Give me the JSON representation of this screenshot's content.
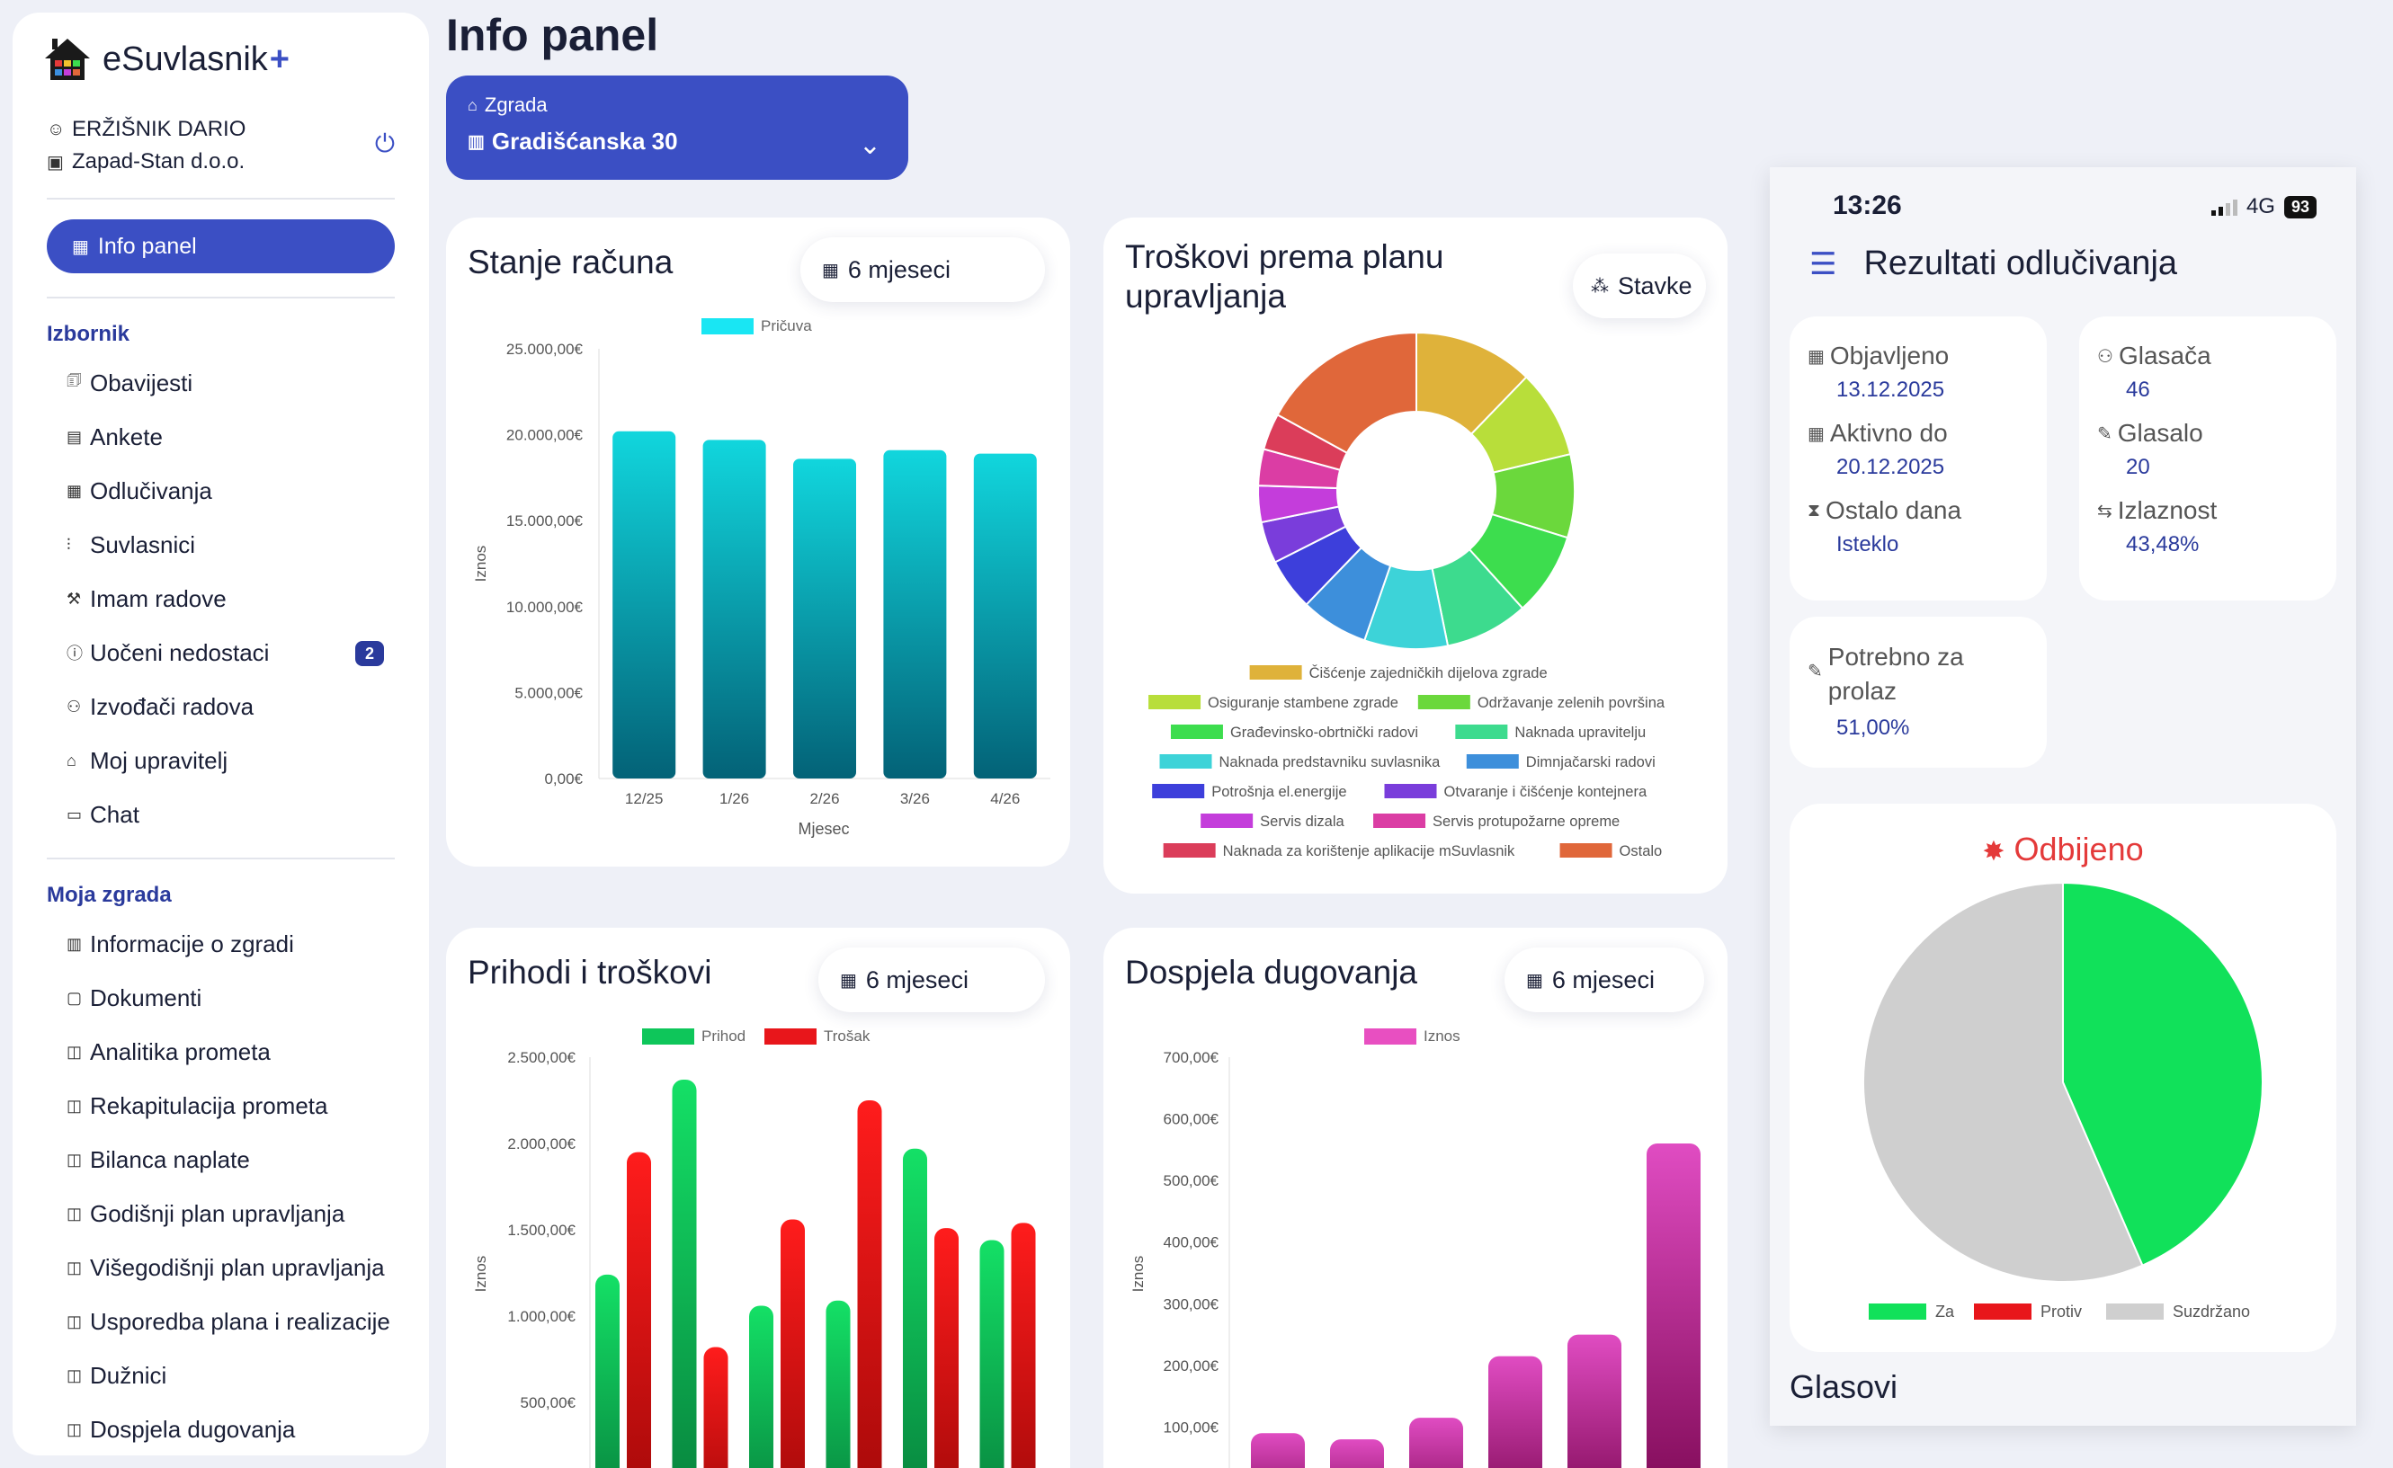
{
  "brand": {
    "name": "eSuvlasnik",
    "plus": "+"
  },
  "user": {
    "name": "ERŽIŠNIK DARIO",
    "company": "Zapad-Stan d.o.o."
  },
  "nav": {
    "active": "Info panel",
    "section1": "Izbornik",
    "items1": [
      {
        "icon": "🗊",
        "label": "Obavijesti"
      },
      {
        "icon": "▤",
        "label": "Ankete"
      },
      {
        "icon": "▦",
        "label": "Odlučivanja"
      },
      {
        "icon": "⫶",
        "label": "Suvlasnici"
      },
      {
        "icon": "⚒",
        "label": "Imam radove"
      },
      {
        "icon": "ⓘ",
        "label": "Uočeni nedostaci",
        "badge": "2"
      },
      {
        "icon": "⚇",
        "label": "Izvođači radova"
      },
      {
        "icon": "⌂",
        "label": "Moj upravitelj"
      },
      {
        "icon": "▭",
        "label": "Chat"
      }
    ],
    "section2": "Moja zgrada",
    "items2": [
      {
        "icon": "▥",
        "label": "Informacije o zgradi"
      },
      {
        "icon": "▢",
        "label": "Dokumenti"
      },
      {
        "icon": "◫",
        "label": "Analitika prometa"
      },
      {
        "icon": "◫",
        "label": "Rekapitulacija prometa"
      },
      {
        "icon": "◫",
        "label": "Bilanca naplate"
      },
      {
        "icon": "◫",
        "label": "Godišnji plan upravljanja"
      },
      {
        "icon": "◫",
        "label": "Višegodišnji plan upravljanja"
      },
      {
        "icon": "◫",
        "label": "Usporedba plana i realizacije"
      },
      {
        "icon": "◫",
        "label": "Dužnici"
      },
      {
        "icon": "◫",
        "label": "Dospjela dugovanja"
      }
    ]
  },
  "page": {
    "title": "Info panel"
  },
  "building": {
    "label": "Zgrada",
    "value": "Gradišćanska 30"
  },
  "colors": {
    "accent": "#3b4fc4",
    "accent_dark": "#2a3a9c",
    "rejected": "#e43a3a"
  },
  "cards": {
    "stanje": {
      "title": "Stanje računa",
      "period": "6 mjeseci"
    },
    "troskovi": {
      "title_line1": "Troškovi prema planu",
      "title_line2": "upravljanja",
      "button": "Stavke"
    },
    "prihodi": {
      "title": "Prihodi i troškovi",
      "period": "6 mjeseci"
    },
    "dugovanja": {
      "title": "Dospjela dugovanja",
      "period": "6 mjeseci"
    }
  },
  "chart_data": [
    {
      "type": "bar",
      "id": "stanje",
      "categories": [
        "12/25",
        "1/26",
        "2/26",
        "3/26",
        "4/26"
      ],
      "series": [
        {
          "name": "Pričuva",
          "values": [
            20200,
            19700,
            18600,
            19100,
            18900
          ]
        }
      ],
      "xlabel": "Mjesec",
      "ylabel": "Iznos",
      "yticks": [
        "0,00€",
        "5.000,00€",
        "10.000,00€",
        "15.000,00€",
        "20.000,00€",
        "25.000,00€"
      ],
      "ylim": [
        0,
        25000
      ]
    },
    {
      "type": "pie",
      "id": "troskovi",
      "donut": true,
      "slices": [
        {
          "name": "Čišćenje zajedničkih dijelova zgrade",
          "value": 11.5,
          "color": "#dfb23a"
        },
        {
          "name": "Osiguranje stambene zgrade",
          "value": 8.5,
          "color": "#b8de3a"
        },
        {
          "name": "Održavanje zelenih površina",
          "value": 8.0,
          "color": "#6bd83c"
        },
        {
          "name": "Građevinsko-obrtnički radovi",
          "value": 8.0,
          "color": "#3ddd4e"
        },
        {
          "name": "Naknada upravitelju",
          "value": 8.0,
          "color": "#3ddb8e"
        },
        {
          "name": "Naknada predstavniku suvlasnika",
          "value": 8.0,
          "color": "#3dd3d8"
        },
        {
          "name": "Dimnjačarski radovi",
          "value": 6.5,
          "color": "#3d8fdb"
        },
        {
          "name": "Potrošnja el.energije",
          "value": 5.0,
          "color": "#3d3fdb"
        },
        {
          "name": "Otvaranje i čišćenje kontejnera",
          "value": 4.0,
          "color": "#7a3ddb"
        },
        {
          "name": "Servis dizala",
          "value": 3.5,
          "color": "#c43ddb"
        },
        {
          "name": "Servis protupožarne opreme",
          "value": 3.5,
          "color": "#db3da4"
        },
        {
          "name": "Naknada za korištenje aplikacije mSuvlasnik",
          "value": 3.5,
          "color": "#db3d5a"
        },
        {
          "name": "Ostalo",
          "value": 16.0,
          "color": "#e0673a"
        }
      ]
    },
    {
      "type": "bar",
      "id": "prihodi",
      "categories": [
        "",
        "",
        "",
        "",
        "",
        ""
      ],
      "series": [
        {
          "name": "Prihod",
          "values": [
            1240,
            2370,
            1060,
            1090,
            1970,
            1440
          ],
          "color": "#0ec65a"
        },
        {
          "name": "Trošak",
          "values": [
            1950,
            820,
            1560,
            2250,
            1510,
            1540
          ],
          "color": "#e8161b"
        }
      ],
      "ylabel": "Iznos",
      "yticks": [
        "500,00€",
        "1.000,00€",
        "1.500,00€",
        "2.000,00€",
        "2.500,00€"
      ],
      "ylim": [
        0,
        2500
      ]
    },
    {
      "type": "bar",
      "id": "dugovanja",
      "categories": [
        "",
        "",
        "",
        "",
        "",
        ""
      ],
      "series": [
        {
          "name": "Iznos",
          "values": [
            90,
            80,
            115,
            215,
            250,
            560
          ],
          "color": "#e84fc1"
        }
      ],
      "ylabel": "Iznos",
      "yticks": [
        "100,00€",
        "200,00€",
        "300,00€",
        "400,00€",
        "500,00€",
        "600,00€",
        "700,00€"
      ],
      "ylim": [
        0,
        700
      ]
    },
    {
      "type": "pie",
      "id": "glasovi",
      "slices": [
        {
          "name": "Za",
          "value": 43.48,
          "color": "#11e15a"
        },
        {
          "name": "Protiv",
          "value": 0,
          "color": "#e8161b"
        },
        {
          "name": "Suzdržano",
          "value": 56.52,
          "color": "#cfcfcf"
        }
      ]
    }
  ],
  "phone": {
    "time": "13:26",
    "network": "4G",
    "battery": "93",
    "title": "Rezultati odlučivanja",
    "published_label": "Objavljeno",
    "published": "13.12.2025",
    "active_label": "Aktivno do",
    "active": "20.12.2025",
    "remaining_label": "Ostalo dana",
    "remaining": "Isteklo",
    "voters_label": "Glasača",
    "voters": "46",
    "voted_label": "Glasalo",
    "voted": "20",
    "turnout_label": "Izlaznost",
    "turnout": "43,48%",
    "required_label": "Potrebno za prolaz",
    "required": "51,00%",
    "result": "Odbijeno",
    "votes_heading": "Glasovi"
  }
}
